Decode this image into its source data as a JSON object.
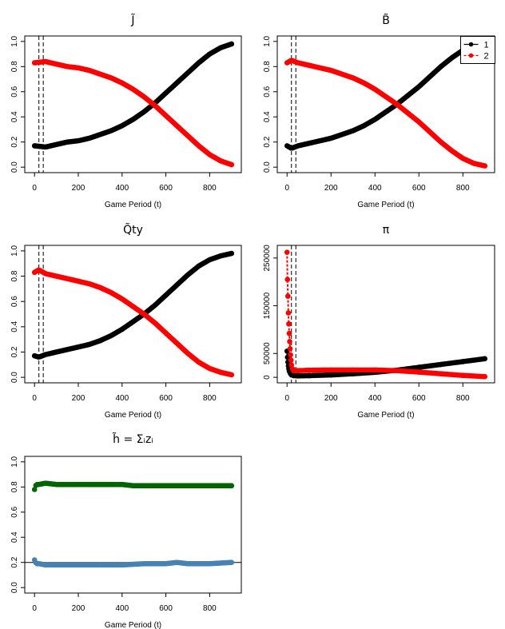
{
  "chart_data": [
    {
      "type": "scatter",
      "title": "J̃",
      "xlabel": "Game Period (t)",
      "ylabel": "",
      "xlim": [
        0,
        900
      ],
      "ylim": [
        0,
        1
      ],
      "xticks": [
        "0",
        "200",
        "400",
        "600",
        "800"
      ],
      "yticks": [
        "0.0",
        "0.2",
        "0.4",
        "0.6",
        "0.8",
        "1.0"
      ],
      "vlines": [
        20,
        40
      ],
      "series": [
        {
          "color": "#000000",
          "x": [
            0,
            50,
            100,
            150,
            200,
            250,
            300,
            350,
            400,
            450,
            500,
            550,
            600,
            650,
            700,
            750,
            800,
            850,
            900
          ],
          "y": [
            0.17,
            0.16,
            0.18,
            0.2,
            0.21,
            0.23,
            0.26,
            0.29,
            0.33,
            0.38,
            0.44,
            0.51,
            0.59,
            0.67,
            0.75,
            0.83,
            0.9,
            0.95,
            0.98
          ]
        },
        {
          "color": "#ff0000",
          "x": [
            0,
            50,
            100,
            150,
            200,
            250,
            300,
            350,
            400,
            450,
            500,
            550,
            600,
            650,
            700,
            750,
            800,
            850,
            900
          ],
          "y": [
            0.83,
            0.84,
            0.82,
            0.8,
            0.79,
            0.77,
            0.74,
            0.71,
            0.67,
            0.62,
            0.56,
            0.49,
            0.41,
            0.33,
            0.25,
            0.17,
            0.1,
            0.05,
            0.02
          ]
        }
      ]
    },
    {
      "type": "scatter",
      "title": "B̃",
      "xlabel": "Game Period (t)",
      "ylabel": "",
      "xlim": [
        0,
        900
      ],
      "ylim": [
        0,
        1
      ],
      "xticks": [
        "0",
        "200",
        "400",
        "600",
        "800"
      ],
      "yticks": [
        "0.0",
        "0.2",
        "0.4",
        "0.6",
        "0.8",
        "1.0"
      ],
      "vlines": [
        20,
        40
      ],
      "legend": {
        "position": "top-right",
        "entries": [
          "1",
          "2"
        ]
      },
      "series": [
        {
          "name": "1",
          "color": "#000000",
          "x": [
            0,
            20,
            50,
            100,
            150,
            200,
            250,
            300,
            350,
            400,
            450,
            500,
            550,
            600,
            650,
            700,
            750,
            800,
            850,
            900
          ],
          "y": [
            0.17,
            0.15,
            0.17,
            0.19,
            0.21,
            0.23,
            0.26,
            0.29,
            0.33,
            0.38,
            0.44,
            0.5,
            0.57,
            0.64,
            0.72,
            0.8,
            0.87,
            0.93,
            0.97,
            0.99
          ]
        },
        {
          "name": "2",
          "color": "#ff0000",
          "x": [
            0,
            20,
            50,
            100,
            150,
            200,
            250,
            300,
            350,
            400,
            450,
            500,
            550,
            600,
            650,
            700,
            750,
            800,
            850,
            900
          ],
          "y": [
            0.83,
            0.85,
            0.83,
            0.81,
            0.79,
            0.77,
            0.74,
            0.71,
            0.67,
            0.62,
            0.56,
            0.5,
            0.43,
            0.36,
            0.28,
            0.2,
            0.13,
            0.07,
            0.03,
            0.01
          ]
        }
      ]
    },
    {
      "type": "scatter",
      "title": "Q̃ty",
      "xlabel": "Game Period (t)",
      "ylabel": "",
      "xlim": [
        0,
        900
      ],
      "ylim": [
        0,
        1
      ],
      "xticks": [
        "0",
        "200",
        "400",
        "600",
        "800"
      ],
      "yticks": [
        "0.0",
        "0.2",
        "0.4",
        "0.6",
        "0.8",
        "1.0"
      ],
      "vlines": [
        20,
        40
      ],
      "series": [
        {
          "color": "#000000",
          "x": [
            0,
            20,
            50,
            100,
            150,
            200,
            250,
            300,
            350,
            400,
            450,
            500,
            550,
            600,
            650,
            700,
            750,
            800,
            850,
            900
          ],
          "y": [
            0.17,
            0.16,
            0.18,
            0.2,
            0.22,
            0.24,
            0.26,
            0.29,
            0.33,
            0.38,
            0.44,
            0.5,
            0.57,
            0.65,
            0.73,
            0.81,
            0.88,
            0.93,
            0.96,
            0.98
          ]
        },
        {
          "color": "#ff0000",
          "x": [
            0,
            20,
            50,
            100,
            150,
            200,
            250,
            300,
            350,
            400,
            450,
            500,
            550,
            600,
            650,
            700,
            750,
            800,
            850,
            900
          ],
          "y": [
            0.83,
            0.85,
            0.82,
            0.8,
            0.78,
            0.76,
            0.74,
            0.71,
            0.67,
            0.62,
            0.56,
            0.5,
            0.43,
            0.35,
            0.27,
            0.19,
            0.12,
            0.07,
            0.04,
            0.02
          ]
        }
      ]
    },
    {
      "type": "scatter",
      "title": "π",
      "xlabel": "Game Period (t)",
      "ylabel": "",
      "xlim": [
        0,
        900
      ],
      "ylim": [
        0,
        265000
      ],
      "xticks": [
        "0",
        "200",
        "400",
        "600",
        "800"
      ],
      "yticks": [
        "0",
        "50000",
        "150000",
        "250000"
      ],
      "ytick_values": [
        0,
        50000,
        150000,
        250000
      ],
      "vlines": [
        20,
        40
      ],
      "series": [
        {
          "color": "#000000",
          "x": [
            0,
            2,
            4,
            6,
            8,
            10,
            15,
            20,
            30,
            50,
            100,
            200,
            300,
            400,
            500,
            600,
            700,
            800,
            900
          ],
          "y": [
            55000,
            42000,
            32000,
            24000,
            18000,
            13000,
            8000,
            5000,
            3500,
            3000,
            3500,
            5000,
            7500,
            10500,
            15000,
            21000,
            27000,
            33000,
            39000
          ]
        },
        {
          "color": "#ff0000",
          "x": [
            0,
            2,
            4,
            6,
            8,
            10,
            12,
            14,
            16,
            18,
            20,
            25,
            30,
            50,
            100,
            200,
            300,
            400,
            500,
            600,
            700,
            800,
            900
          ],
          "y": [
            262000,
            205000,
            170000,
            135000,
            112000,
            92000,
            75000,
            60000,
            47000,
            36000,
            26000,
            18000,
            14000,
            14000,
            15000,
            15500,
            15500,
            15500,
            14000,
            11000,
            7500,
            4000,
            1500
          ]
        }
      ]
    },
    {
      "type": "scatter",
      "title": "h̃ = Σᵢzᵢ",
      "xlabel": "Game Period (t)",
      "ylabel": "",
      "xlim": [
        0,
        900
      ],
      "ylim": [
        0,
        1
      ],
      "xticks": [
        "0",
        "200",
        "400",
        "600",
        "800"
      ],
      "yticks": [
        "0.0",
        "0.2",
        "0.4",
        "0.6",
        "0.8",
        "1.0"
      ],
      "hlines": [
        0.2
      ],
      "series": [
        {
          "color": "#006400",
          "x": [
            0,
            5,
            10,
            20,
            50,
            100,
            200,
            300,
            400,
            450,
            500,
            600,
            700,
            800,
            900
          ],
          "y": [
            0.78,
            0.81,
            0.82,
            0.82,
            0.83,
            0.82,
            0.82,
            0.82,
            0.82,
            0.81,
            0.81,
            0.81,
            0.81,
            0.81,
            0.81
          ]
        },
        {
          "color": "#4682b4",
          "x": [
            0,
            5,
            10,
            20,
            50,
            100,
            200,
            300,
            400,
            500,
            600,
            650,
            700,
            800,
            900
          ],
          "y": [
            0.22,
            0.2,
            0.19,
            0.19,
            0.18,
            0.18,
            0.18,
            0.18,
            0.18,
            0.19,
            0.19,
            0.2,
            0.19,
            0.19,
            0.2
          ]
        }
      ]
    }
  ]
}
